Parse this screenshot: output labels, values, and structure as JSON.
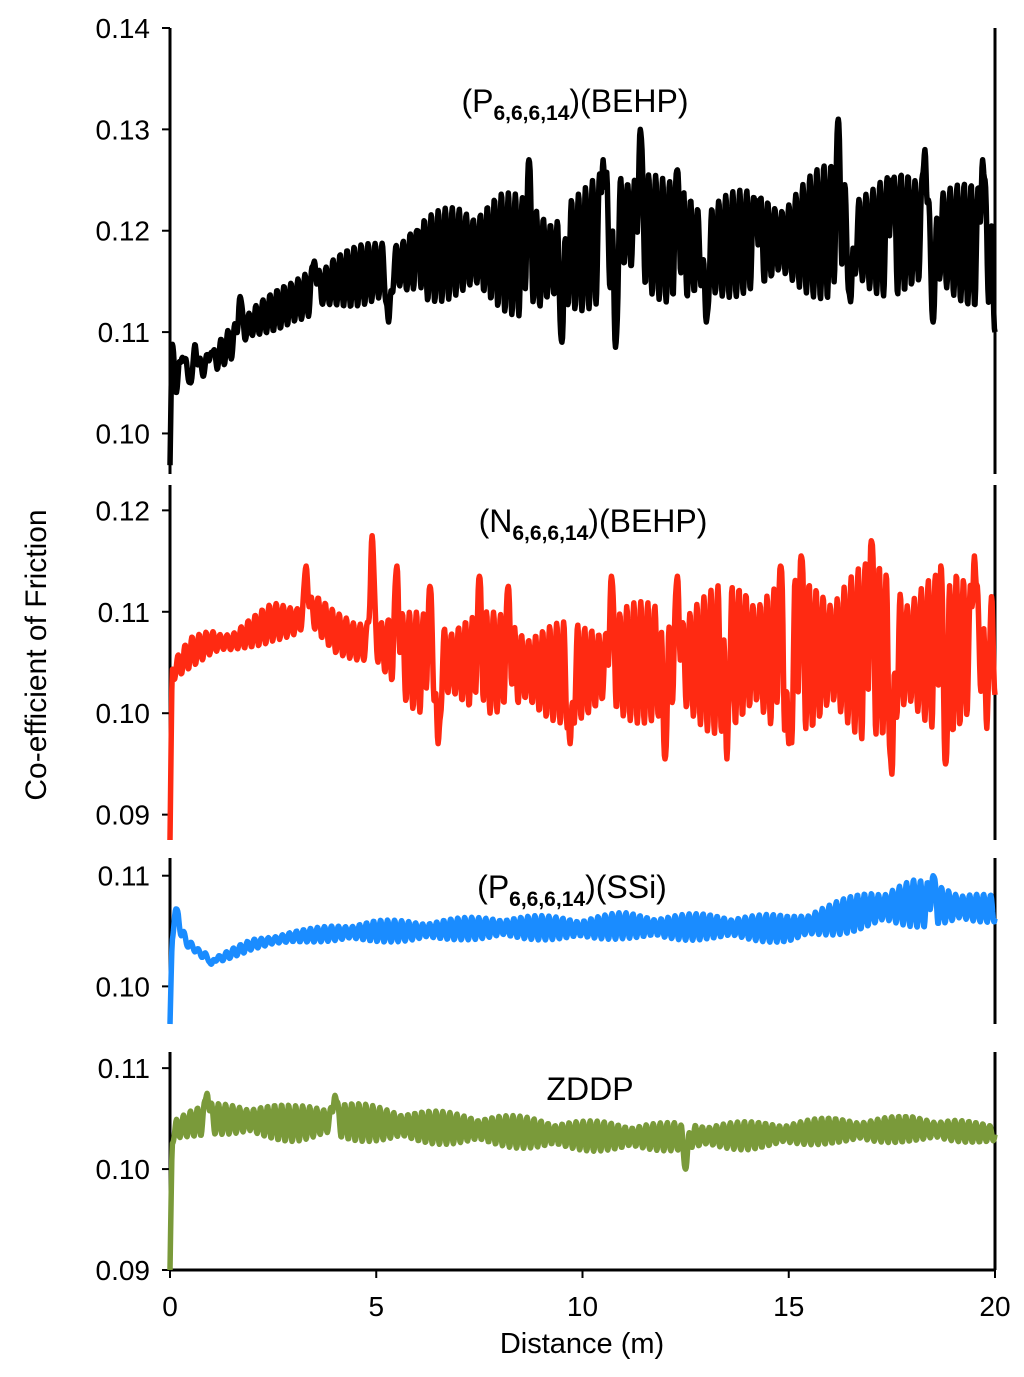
{
  "figure": {
    "ylabel": "Co-efficient of Friction",
    "xlabel": "Distance (m)"
  },
  "chart_data": [
    {
      "type": "line",
      "title_main": "(P",
      "title_sub": "6,6,6,14",
      "title_rest": ")(BEHP)",
      "color": "#000000",
      "xlim": [
        0,
        20
      ],
      "ylim": [
        0.096,
        0.14
      ],
      "yticks": [
        "0.10",
        "0.11",
        "0.12",
        "0.13",
        "0.14"
      ],
      "ytick_values": [
        0.1,
        0.11,
        0.12,
        0.13,
        0.14
      ],
      "x": [
        0,
        0.05,
        0.1,
        0.15,
        0.5,
        1,
        1.5,
        2,
        2.5,
        3,
        3.5,
        4,
        5,
        6,
        7,
        8,
        9,
        10,
        11,
        12,
        13,
        14,
        15,
        16,
        17,
        18,
        19,
        20
      ],
      "y": [
        0.096,
        0.107,
        0.108,
        0.107,
        0.106,
        0.107,
        0.109,
        0.111,
        0.112,
        0.113,
        0.114,
        0.115,
        0.116,
        0.117,
        0.118,
        0.118,
        0.117,
        0.118,
        0.121,
        0.119,
        0.118,
        0.119,
        0.119,
        0.12,
        0.119,
        0.12,
        0.119,
        0.118
      ],
      "amplitude": [
        0,
        0.002,
        0.002,
        0.002,
        0.001,
        0.001,
        0.002,
        0.002,
        0.002,
        0.002,
        0.003,
        0.003,
        0.003,
        0.004,
        0.005,
        0.006,
        0.006,
        0.006,
        0.007,
        0.006,
        0.006,
        0.005,
        0.005,
        0.007,
        0.006,
        0.006,
        0.006,
        0.006
      ],
      "peak_x": [
        0.1,
        0.3,
        0.6,
        1.0,
        1.7,
        3.5,
        6.0,
        8.7,
        10.5,
        11.4,
        12.3,
        14.2,
        16.2,
        17.5,
        18.3,
        19.7
      ],
      "peak_y": [
        0.11,
        0.1075,
        0.109,
        0.108,
        0.1135,
        0.117,
        0.12,
        0.127,
        0.127,
        0.13,
        0.126,
        0.123,
        0.131,
        0.125,
        0.128,
        0.127
      ],
      "trough_x": [
        0.15,
        0.5,
        5.3,
        9.5,
        10.8,
        13.0,
        16.5,
        18.5,
        20.0
      ],
      "trough_y": [
        0.104,
        0.105,
        0.111,
        0.109,
        0.1085,
        0.111,
        0.113,
        0.111,
        0.11
      ]
    },
    {
      "type": "line",
      "title_main": "(N",
      "title_sub": "6,6,6,14",
      "title_rest": ")(BEHP)",
      "color": "#ff2a12",
      "xlim": [
        0,
        20
      ],
      "ylim": [
        0.0875,
        0.1225
      ],
      "yticks": [
        "0.09",
        "0.10",
        "0.11",
        "0.12"
      ],
      "ytick_values": [
        0.09,
        0.1,
        0.11,
        0.12
      ],
      "x": [
        0,
        0.05,
        0.15,
        0.5,
        1,
        1.5,
        2,
        2.5,
        3,
        3.5,
        4,
        4.5,
        5,
        5.5,
        6,
        6.5,
        7,
        8,
        9,
        10,
        11,
        12,
        13,
        14,
        15,
        16,
        17,
        18,
        19,
        20
      ],
      "y": [
        0.0875,
        0.104,
        0.1045,
        0.106,
        0.107,
        0.107,
        0.108,
        0.109,
        0.109,
        0.11,
        0.108,
        0.107,
        0.107,
        0.106,
        0.105,
        0.105,
        0.105,
        0.105,
        0.104,
        0.104,
        0.105,
        0.105,
        0.105,
        0.106,
        0.105,
        0.106,
        0.106,
        0.106,
        0.106,
        0.107
      ],
      "amplitude": [
        0,
        0.001,
        0.001,
        0.0015,
        0.0015,
        0.001,
        0.0015,
        0.002,
        0.002,
        0.002,
        0.002,
        0.002,
        0.003,
        0.004,
        0.005,
        0.005,
        0.005,
        0.005,
        0.005,
        0.005,
        0.006,
        0.006,
        0.007,
        0.008,
        0.008,
        0.008,
        0.009,
        0.008,
        0.008,
        0.007
      ],
      "peak_x": [
        3.3,
        4.9,
        5.5,
        6.3,
        7.5,
        8.2,
        10.7,
        12.3,
        13.5,
        14.8,
        15.3,
        17.0,
        18.7,
        19.5,
        19.8
      ],
      "peak_y": [
        0.1145,
        0.1175,
        0.1145,
        0.1125,
        0.1135,
        0.1125,
        0.1135,
        0.1135,
        0.1145,
        0.1145,
        0.1155,
        0.117,
        0.1155,
        0.1155,
        0.1155
      ],
      "trough_x": [
        6.5,
        9.7,
        12.0,
        13.5,
        15.0,
        17.5,
        18.8,
        19.8
      ],
      "trough_y": [
        0.097,
        0.097,
        0.0955,
        0.0955,
        0.097,
        0.094,
        0.095,
        0.0985
      ]
    },
    {
      "type": "line",
      "title_main": "(P",
      "title_sub": "6,6,6,14",
      "title_rest": ")(SSi)",
      "color": "#1a8cff",
      "xlim": [
        0,
        20
      ],
      "ylim": [
        0.0966,
        0.1116
      ],
      "yticks": [
        "0.10",
        "0.11"
      ],
      "ytick_values": [
        0.1,
        0.11
      ],
      "x": [
        0,
        0.05,
        0.15,
        0.4,
        0.8,
        1.2,
        1.5,
        2,
        3,
        4,
        5,
        6,
        7,
        8,
        9,
        10,
        11,
        12,
        13,
        14,
        15,
        16,
        17,
        18,
        19,
        20
      ],
      "y": [
        0.0966,
        0.104,
        0.106,
        0.104,
        0.1028,
        0.1025,
        0.103,
        0.1038,
        0.1045,
        0.1048,
        0.105,
        0.105,
        0.1052,
        0.1053,
        0.1053,
        0.1052,
        0.1055,
        0.1053,
        0.1054,
        0.1053,
        0.1052,
        0.106,
        0.107,
        0.1075,
        0.1072,
        0.107
      ],
      "amplitude": [
        0,
        0.0005,
        0.0008,
        0.0005,
        0.0004,
        0.0003,
        0.0004,
        0.0005,
        0.0005,
        0.0008,
        0.001,
        0.001,
        0.001,
        0.0011,
        0.0011,
        0.0011,
        0.0012,
        0.0012,
        0.0012,
        0.0012,
        0.0013,
        0.0015,
        0.0018,
        0.0022,
        0.0018,
        0.0012
      ],
      "peak_x": [
        0.15,
        18.5
      ],
      "peak_y": [
        0.107,
        0.11
      ],
      "trough_x": [
        1.0
      ],
      "trough_y": [
        0.102
      ]
    },
    {
      "type": "line",
      "title": "ZDDP",
      "color": "#7a9a3a",
      "xlim": [
        0,
        20
      ],
      "ylim": [
        0.09,
        0.1116
      ],
      "yticks": [
        "0.09",
        "0.10",
        "0.11"
      ],
      "ytick_values": [
        0.09,
        0.1,
        0.11
      ],
      "xticks": [
        "0",
        "5",
        "10",
        "15",
        "20"
      ],
      "xtick_values": [
        0,
        5,
        10,
        15,
        20
      ],
      "x": [
        0,
        0.05,
        0.15,
        0.5,
        1,
        2,
        3,
        4,
        5,
        6,
        7,
        8,
        9,
        10,
        11,
        12,
        13,
        14,
        15,
        16,
        17,
        18,
        19,
        20
      ],
      "y": [
        0.09,
        0.103,
        0.104,
        0.1045,
        0.105,
        0.1048,
        0.1045,
        0.1048,
        0.1045,
        0.1042,
        0.104,
        0.1038,
        0.1035,
        0.1033,
        0.1032,
        0.1032,
        0.1033,
        0.1033,
        0.1035,
        0.1038,
        0.1038,
        0.104,
        0.1038,
        0.1035
      ],
      "amplitude": [
        0,
        0.001,
        0.0015,
        0.0015,
        0.0015,
        0.0018,
        0.0018,
        0.002,
        0.0018,
        0.0017,
        0.0016,
        0.0016,
        0.0016,
        0.0015,
        0.0015,
        0.0014,
        0.0014,
        0.0014,
        0.0013,
        0.0013,
        0.0013,
        0.0013,
        0.0012,
        0.0008
      ],
      "peak_x": [
        0.9,
        4.0
      ],
      "peak_y": [
        0.1075,
        0.1073
      ],
      "trough_x": [
        12.5
      ],
      "trough_y": [
        0.1
      ]
    }
  ]
}
